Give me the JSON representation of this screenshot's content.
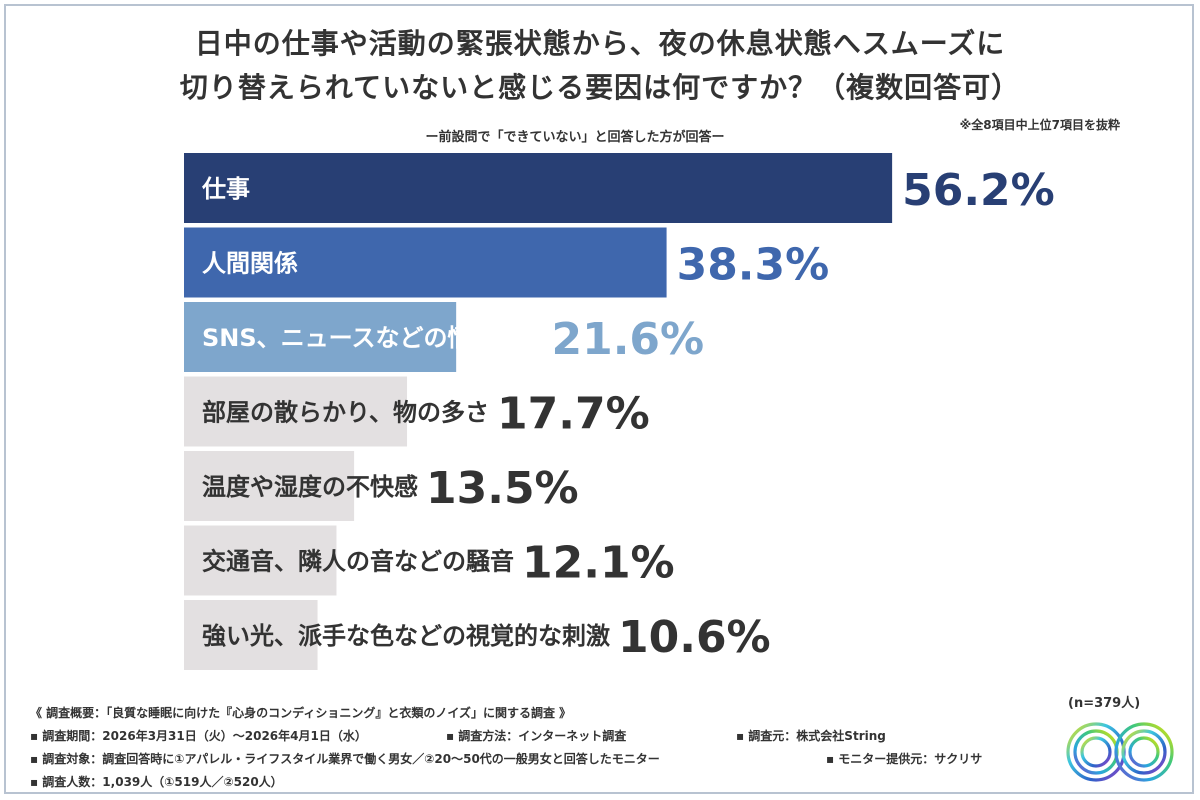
{
  "title_line1": "日中の仕事や活動の緊張状態から、夜の休息状態へスムーズに",
  "title_line2": "切り替えられていないと感じる要因は何ですか？（複数回答可）",
  "subtitle": "ー前設問で「できていない」と回答した方が回答ー",
  "note": "※全8項目中上位7項目を抜粋",
  "sample_size": "(n=379人)",
  "footer": {
    "line1": "《 調査概要：「良質な睡眠に向けた『心身のコンディショニング』と衣類のノイズ」に関する調査 》",
    "line2a": "▪ 調査期間：2026年3月31日（火）〜2026年4月1日（水）",
    "line2b": "▪ 調査方法：インターネット調査",
    "line2c": "▪ 調査元：株式会社String",
    "line3a": "▪ 調査対象：調査回答時に①アパレル・ライフスタイル業界で働く男女／②20〜50代の一般男女と回答したモニター",
    "line3b": "▪ モニター提供元：サクリサ",
    "line4": "▪ 調査人数：1,039人（①519人／②520人）"
  },
  "chart_data": {
    "type": "bar",
    "orientation": "horizontal",
    "categories": [
      "仕事",
      "人間関係",
      "SNS、ニュースなどの情報過多",
      "部屋の散らかり、物の多さ",
      "温度や湿度の不快感",
      "交通音、隣人の音などの騒音",
      "強い光、派手な色などの視覚的な刺激"
    ],
    "values": [
      56.2,
      38.3,
      21.6,
      17.7,
      13.5,
      12.1,
      10.6
    ],
    "value_labels": [
      "56.2%",
      "38.3%",
      "21.6%",
      "17.7%",
      "13.5%",
      "12.1%",
      "10.6%"
    ],
    "bar_colors": [
      "#283f74",
      "#3f67ad",
      "#7ea6cc",
      "#e3e0e1",
      "#e3e0e1",
      "#e3e0e1",
      "#e3e0e1"
    ],
    "label_colors": [
      "#ffffff",
      "#ffffff",
      "#ffffff",
      "#333333",
      "#333333",
      "#333333",
      "#333333"
    ],
    "value_colors": [
      "#283f74",
      "#3f67ad",
      "#7ea6cc",
      "#333333",
      "#333333",
      "#333333",
      "#333333"
    ],
    "xlim": [
      0,
      100
    ],
    "grid": false,
    "legend": "none"
  }
}
